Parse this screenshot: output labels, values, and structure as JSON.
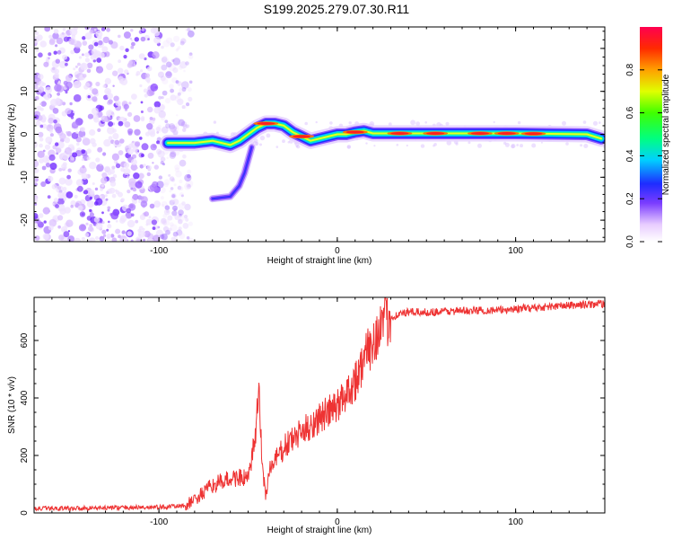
{
  "title": "S199.2025.279.07.30.R11",
  "colors": {
    "snr_line": "#ee3333",
    "trace_core": "#ff2020",
    "axis": "#000000"
  },
  "chart_data": [
    {
      "type": "heatmap",
      "xlabel": "Height of straight line (km)",
      "ylabel": "Frequency (Hz)",
      "xlim": [
        -170,
        150
      ],
      "ylim": [
        -25,
        25
      ],
      "xticks": [
        -100,
        0,
        100
      ],
      "xtick_labels": [
        "-100",
        "0",
        "100"
      ],
      "yticks": [
        -20,
        -10,
        0,
        10,
        20
      ],
      "ytick_labels": [
        "-20",
        "-10",
        "0",
        "10",
        "20"
      ],
      "colorbar": {
        "label": "Normalized spectral amplitude",
        "range": [
          0,
          1
        ],
        "ticks": [
          0.0,
          0.2,
          0.4,
          0.6,
          0.8
        ],
        "tick_labels": [
          "0.0",
          "0.2",
          "0.4",
          "0.6",
          "0.8"
        ]
      },
      "trace": {
        "x": [
          -95,
          -80,
          -70,
          -60,
          -55,
          -50,
          -45,
          -40,
          -35,
          -30,
          -25,
          -20,
          -15,
          -10,
          -5,
          0,
          5,
          10,
          15,
          20,
          40,
          60,
          80,
          100,
          120,
          140,
          148
        ],
        "y": [
          -2,
          -2,
          -1.5,
          -2.5,
          -1.5,
          0,
          1.5,
          2.5,
          2.5,
          2,
          0.5,
          -0.5,
          -1.5,
          -1,
          -0.5,
          0,
          0,
          0.5,
          0.8,
          0.2,
          0.2,
          0.2,
          0.2,
          0.2,
          0.1,
          0,
          -1
        ],
        "peak_x": [
          -40,
          -20,
          10,
          35,
          55,
          80,
          95,
          110
        ]
      },
      "branch": {
        "x": [
          -70,
          -60,
          -55,
          -52,
          -50,
          -48
        ],
        "y": [
          -15,
          -14.5,
          -12,
          -9,
          -6,
          -3
        ]
      },
      "noise_region_x": [
        -170,
        -90
      ]
    },
    {
      "type": "line",
      "xlabel": "Height of straight line (km)",
      "ylabel": "SNR (10 * v/v)",
      "xlim": [
        -170,
        150
      ],
      "ylim": [
        0,
        750
      ],
      "xticks": [
        -100,
        0,
        100
      ],
      "xtick_labels": [
        "-100",
        "0",
        "100"
      ],
      "yticks": [
        0,
        200,
        400,
        600
      ],
      "ytick_labels": [
        "0",
        "200",
        "400",
        "600"
      ],
      "series": [
        {
          "name": "SNR",
          "x": [
            -170,
            -100,
            -85,
            -78,
            -70,
            -62,
            -55,
            -50,
            -46,
            -44,
            -42,
            -40,
            -38,
            -33,
            -28,
            -20,
            -10,
            0,
            5,
            10,
            15,
            20,
            25,
            30,
            35,
            40,
            50,
            60,
            70,
            80,
            90,
            100,
            110,
            120,
            130,
            140,
            150
          ],
          "values": [
            15,
            20,
            25,
            55,
            95,
            115,
            125,
            115,
            260,
            420,
            160,
            60,
            150,
            200,
            240,
            280,
            330,
            370,
            420,
            460,
            530,
            600,
            655,
            680,
            692,
            698,
            698,
            701,
            703,
            705,
            705,
            710,
            714,
            718,
            722,
            725,
            728
          ]
        }
      ]
    }
  ]
}
